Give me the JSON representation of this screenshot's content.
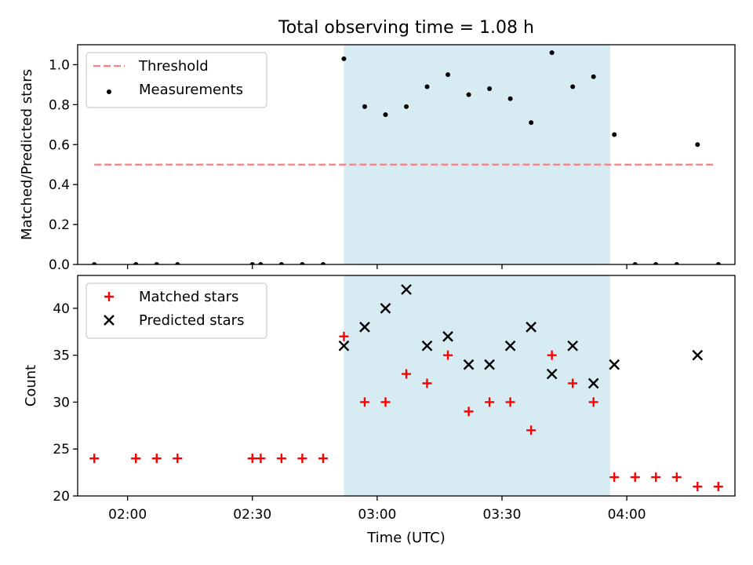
{
  "chart_data": {
    "type": "scatter",
    "title": "Total observing time = 1.08 h",
    "xlabel": "Time (UTC)",
    "x_ticks": [
      "02:00",
      "02:30",
      "03:00",
      "03:30",
      "04:00"
    ],
    "x_range": [
      "01:48",
      "04:26"
    ],
    "shaded_interval": {
      "x": [
        "02:52",
        "03:56"
      ],
      "color": "#add8e6"
    },
    "panels": [
      {
        "ylabel": "Matched/Predicted stars",
        "ylim": [
          0,
          1.1
        ],
        "y_ticks": [
          "0.0",
          "0.2",
          "0.4",
          "0.6",
          "0.8",
          "1.0"
        ],
        "legend": {
          "placement": "upper left",
          "entries": [
            "Threshold",
            "Measurements"
          ]
        },
        "series": [
          {
            "name": "Threshold",
            "type": "line",
            "style": "dashed",
            "color": "#ff7f7f",
            "x": [
              "01:52",
              "04:21"
            ],
            "y": [
              0.5,
              0.5
            ]
          },
          {
            "name": "Measurements",
            "type": "scatter",
            "color": "#000000",
            "x": [
              "01:52",
              "02:02",
              "02:02",
              "02:07",
              "02:12",
              "02:30",
              "02:32",
              "02:37",
              "02:42",
              "02:47",
              "02:52",
              "02:57",
              "03:02",
              "03:07",
              "03:12",
              "03:17",
              "03:22",
              "03:27",
              "03:32",
              "03:37",
              "03:42",
              "03:47",
              "03:52",
              "03:57",
              "04:02",
              "04:07",
              "04:12",
              "04:17",
              "04:22"
            ],
            "y": [
              0,
              0,
              0,
              0,
              0,
              0,
              0,
              0,
              0,
              0,
              1.03,
              0.79,
              0.75,
              0.79,
              0.89,
              0.95,
              0.85,
              0.88,
              0.83,
              0.71,
              1.06,
              0.89,
              0.94,
              0.65,
              0,
              0,
              0,
              0.6,
              0
            ]
          }
        ]
      },
      {
        "ylabel": "Count",
        "ylim": [
          20,
          43.5
        ],
        "y_ticks": [
          "20",
          "25",
          "30",
          "35",
          "40"
        ],
        "legend": {
          "placement": "upper left",
          "entries": [
            "Matched stars",
            "Predicted stars"
          ]
        },
        "series": [
          {
            "name": "Matched stars",
            "type": "scatter",
            "marker": "+",
            "color": "#ff0000",
            "x": [
              "01:52",
              "02:02",
              "02:02",
              "02:07",
              "02:12",
              "02:30",
              "02:32",
              "02:37",
              "02:42",
              "02:47",
              "02:52",
              "02:57",
              "03:02",
              "03:07",
              "03:12",
              "03:17",
              "03:22",
              "03:27",
              "03:32",
              "03:37",
              "03:42",
              "03:47",
              "03:52",
              "03:57",
              "04:02",
              "04:07",
              "04:12",
              "04:17",
              "04:22"
            ],
            "y": [
              24,
              24,
              24,
              24,
              24,
              24,
              24,
              24,
              24,
              24,
              37,
              30,
              30,
              33,
              32,
              35,
              29,
              30,
              30,
              27,
              35,
              32,
              30,
              22,
              22,
              22,
              22,
              21,
              21
            ]
          },
          {
            "name": "Predicted stars",
            "type": "scatter",
            "marker": "x",
            "color": "#000000",
            "x": [
              "02:52",
              "02:57",
              "03:02",
              "03:07",
              "03:12",
              "03:17",
              "03:22",
              "03:27",
              "03:32",
              "03:37",
              "03:42",
              "03:47",
              "03:52",
              "03:57",
              "04:17"
            ],
            "y": [
              36,
              38,
              40,
              42,
              36,
              37,
              34,
              34,
              36,
              38,
              33,
              36,
              32,
              34,
              35
            ]
          }
        ]
      }
    ]
  }
}
